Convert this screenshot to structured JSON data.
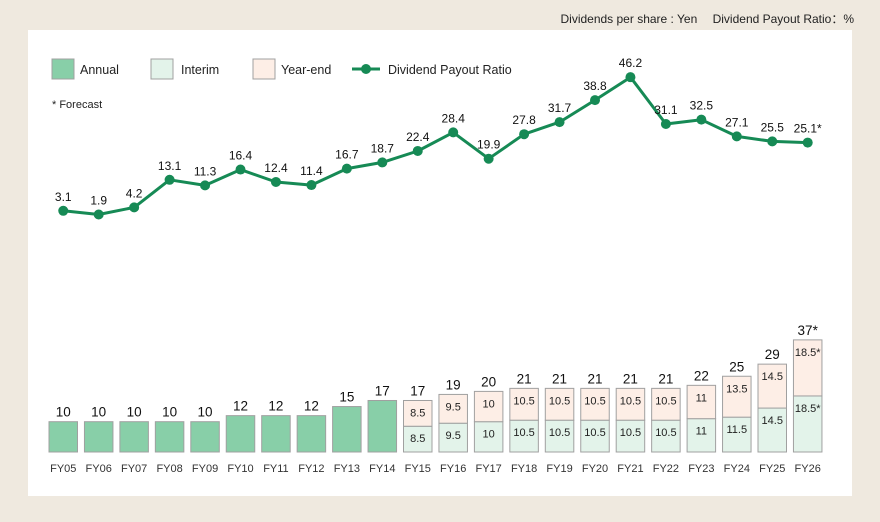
{
  "units": {
    "dividends": "Dividends per share : Yen",
    "payout": "Dividend Payout Ratio：%"
  },
  "legend": {
    "annual": "Annual",
    "interim": "Interim",
    "yearend": "Year-end",
    "payout": "Dividend Payout Ratio"
  },
  "note": "* Forecast",
  "colors": {
    "annual": "#88cfa8",
    "interim": "#e3f3ea",
    "yearend": "#fdeee6",
    "bar_stroke": "#a0a0a0",
    "line": "#168a55"
  },
  "chart_data": {
    "type": "bar",
    "categories": [
      "FY05",
      "FY06",
      "FY07",
      "FY08",
      "FY09",
      "FY10",
      "FY11",
      "FY12",
      "FY13",
      "FY14",
      "FY15",
      "FY16",
      "FY17",
      "FY18",
      "FY19",
      "FY20",
      "FY21",
      "FY22",
      "FY23",
      "FY24",
      "FY25",
      "FY26"
    ],
    "series": [
      {
        "name": "Annual",
        "values": [
          10,
          10,
          10,
          10,
          10,
          12,
          12,
          12,
          15,
          17,
          null,
          null,
          null,
          null,
          null,
          null,
          null,
          null,
          null,
          null,
          null,
          null
        ]
      },
      {
        "name": "Interim",
        "values": [
          null,
          null,
          null,
          null,
          null,
          null,
          null,
          null,
          null,
          null,
          8.5,
          9.5,
          10,
          10.5,
          10.5,
          10.5,
          10.5,
          10.5,
          11,
          11.5,
          14.5,
          18.5
        ]
      },
      {
        "name": "Year-end",
        "values": [
          null,
          null,
          null,
          null,
          null,
          null,
          null,
          null,
          null,
          null,
          8.5,
          9.5,
          10,
          10.5,
          10.5,
          10.5,
          10.5,
          10.5,
          11,
          13.5,
          14.5,
          18.5
        ]
      },
      {
        "name": "Dividend Payout Ratio",
        "values": [
          3.1,
          1.9,
          4.2,
          13.1,
          11.3,
          16.4,
          12.4,
          11.4,
          16.7,
          18.7,
          22.4,
          28.4,
          19.9,
          27.8,
          31.7,
          38.8,
          46.2,
          31.1,
          32.5,
          27.1,
          25.5,
          25.1
        ]
      }
    ],
    "totals": [
      10,
      10,
      10,
      10,
      10,
      12,
      12,
      12,
      15,
      17,
      17,
      19,
      20,
      21,
      21,
      21,
      21,
      21,
      22,
      25,
      29,
      37
    ],
    "forecast_index": 21,
    "forecast_mark": "*",
    "dividend_ylim": [
      0,
      40
    ],
    "payout_ylim": [
      0,
      50
    ],
    "grid": false,
    "legend_position": "top-left"
  }
}
